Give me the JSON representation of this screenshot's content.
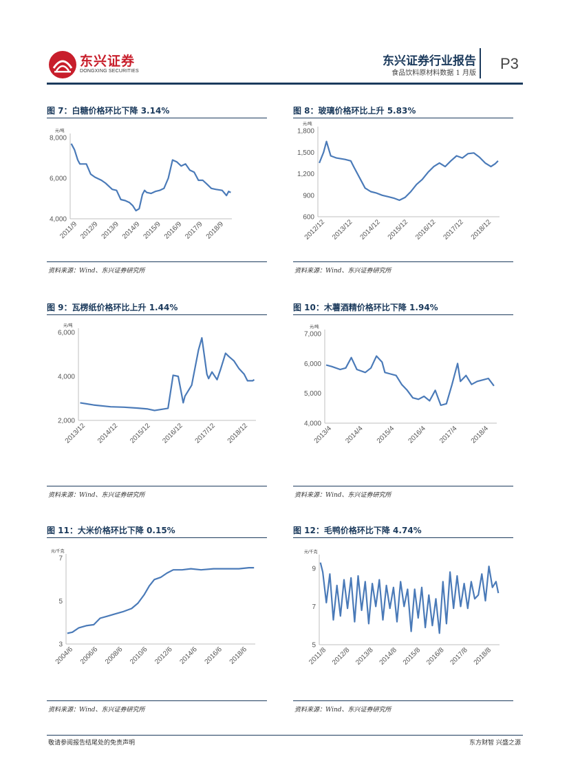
{
  "header": {
    "company_cn": "东兴证券",
    "company_en": "DONGXING SECURITIES",
    "report_title": "东兴证券行业报告",
    "report_subtitle": "食品饮料原材料数据 1 月版",
    "page": "P3"
  },
  "footer": {
    "left": "敬请参阅报告结尾处的免责声明",
    "right": "东方财智 兴盛之源"
  },
  "colors": {
    "line": "#4a7ab8",
    "brand_red": "#c81e2b",
    "navy": "#1b3a5c",
    "axis": "#bfbfbf"
  },
  "chart_data": [
    {
      "type": "line",
      "title": "图 7：白糖价格环比下降 3.14%",
      "unit": "元/吨",
      "source": "资料来源：Wind、东兴证券研究所",
      "yticks": [
        "8,000",
        "6,000",
        "4,000"
      ],
      "ylim": [
        4000,
        8000
      ],
      "xticks": [
        "2011/9",
        "2012/9",
        "2013/9",
        "2014/9",
        "2015/9",
        "2016/9",
        "2017/9",
        "2018/9"
      ],
      "x_range": [
        2011.55,
        2019.05
      ],
      "series": [
        {
          "name": "白糖",
          "x": [
            2011.6,
            2011.75,
            2011.9,
            2012.0,
            2012.3,
            2012.5,
            2012.7,
            2013.0,
            2013.2,
            2013.5,
            2013.7,
            2013.9,
            2014.1,
            2014.3,
            2014.45,
            2014.6,
            2014.75,
            2014.9,
            2015.0,
            2015.1,
            2015.3,
            2015.5,
            2015.7,
            2015.9,
            2016.1,
            2016.3,
            2016.5,
            2016.7,
            2016.9,
            2017.1,
            2017.3,
            2017.5,
            2017.7,
            2017.9,
            2018.1,
            2018.3,
            2018.6,
            2018.8,
            2018.9,
            2019.0
          ],
          "y": [
            7700,
            7400,
            6900,
            6700,
            6700,
            6200,
            6050,
            5900,
            5750,
            5450,
            5400,
            4950,
            4900,
            4800,
            4650,
            4400,
            4500,
            5200,
            5400,
            5300,
            5250,
            5350,
            5400,
            5500,
            6000,
            6900,
            6800,
            6600,
            6700,
            6400,
            6300,
            5900,
            5900,
            5700,
            5500,
            5450,
            5400,
            5150,
            5350,
            5300
          ]
        }
      ]
    },
    {
      "type": "line",
      "title": "图 8：玻璃价格环比上升 5.83%",
      "unit": "元/吨",
      "source": "资料来源：Wind、东兴证券研究所",
      "yticks": [
        "1,800",
        "1,500",
        "1,200",
        "900",
        "600"
      ],
      "ylim": [
        600,
        1800
      ],
      "xticks": [
        "2012/12",
        "2013/12",
        "2014/12",
        "2015/12",
        "2016/12",
        "2017/12",
        "2018/12"
      ],
      "x_range": [
        2012.85,
        2019.2
      ],
      "series": [
        {
          "name": "玻璃",
          "x": [
            2012.9,
            2013.05,
            2013.15,
            2013.3,
            2013.5,
            2013.8,
            2014.0,
            2014.1,
            2014.3,
            2014.5,
            2014.7,
            2014.9,
            2015.1,
            2015.3,
            2015.5,
            2015.7,
            2015.9,
            2016.1,
            2016.3,
            2016.5,
            2016.7,
            2016.9,
            2017.1,
            2017.3,
            2017.5,
            2017.7,
            2017.9,
            2018.1,
            2018.3,
            2018.5,
            2018.7,
            2018.9,
            2019.05,
            2019.15
          ],
          "y": [
            1350,
            1500,
            1650,
            1450,
            1420,
            1400,
            1380,
            1300,
            1150,
            1000,
            950,
            930,
            900,
            880,
            860,
            830,
            870,
            950,
            1050,
            1120,
            1220,
            1300,
            1350,
            1300,
            1380,
            1450,
            1420,
            1480,
            1490,
            1430,
            1350,
            1300,
            1340,
            1380
          ]
        }
      ]
    },
    {
      "type": "line",
      "title": "图 9：瓦楞纸价格环比上升 1.44%",
      "unit": "元/吨",
      "source": "资料来源：Wind、东兴证券研究所",
      "yticks": [
        "6,000",
        "4,000",
        "2,000"
      ],
      "ylim": [
        2000,
        6000
      ],
      "xticks": [
        "2013/12",
        "2014/12",
        "2015/12",
        "2016/12",
        "2017/12",
        "2018/12"
      ],
      "x_range": [
        2013.85,
        2019.1
      ],
      "series": [
        {
          "name": "瓦楞纸",
          "x": [
            2013.9,
            2014.3,
            2014.8,
            2015.2,
            2015.6,
            2015.9,
            2016.1,
            2016.5,
            2016.65,
            2016.8,
            2016.95,
            2017.0,
            2017.2,
            2017.4,
            2017.5,
            2017.65,
            2017.7,
            2017.8,
            2017.95,
            2018.05,
            2018.2,
            2018.3,
            2018.45,
            2018.6,
            2018.75,
            2018.85,
            2019.0,
            2019.05
          ],
          "y": [
            2800,
            2700,
            2620,
            2600,
            2560,
            2520,
            2450,
            2550,
            4050,
            4000,
            2800,
            3100,
            3600,
            5200,
            5750,
            4100,
            3900,
            4200,
            3850,
            4300,
            5050,
            4900,
            4700,
            4350,
            4100,
            3800,
            3800,
            3850
          ]
        }
      ]
    },
    {
      "type": "line",
      "title": "图 10：木薯酒精价格环比下降 1.94%",
      "unit": "元/吨",
      "source": "资料来源：Wind、东兴证券研究所",
      "yticks": [
        "7,000",
        "6,000",
        "5,000",
        "4,000"
      ],
      "ylim": [
        4000,
        7000
      ],
      "xticks": [
        "2013/4",
        "2014/4",
        "2015/4",
        "2016/4",
        "2017/4",
        "2018/4"
      ],
      "x_range": [
        2013.25,
        2019.4
      ],
      "series": [
        {
          "name": "木薯酒精",
          "x": [
            2013.3,
            2013.5,
            2013.8,
            2014.0,
            2014.2,
            2014.4,
            2014.7,
            2014.9,
            2015.0,
            2015.1,
            2015.3,
            2015.4,
            2015.6,
            2015.8,
            2016.0,
            2016.2,
            2016.4,
            2016.6,
            2016.8,
            2017.0,
            2017.2,
            2017.4,
            2017.6,
            2017.8,
            2017.9,
            2018.0,
            2018.1,
            2018.3,
            2018.5,
            2018.7,
            2018.9,
            2019.1,
            2019.3
          ],
          "y": [
            5950,
            5900,
            5800,
            5850,
            6200,
            5800,
            5700,
            5850,
            6050,
            6250,
            6050,
            5700,
            5650,
            5600,
            5300,
            5100,
            4850,
            4800,
            4900,
            4750,
            5100,
            4600,
            4650,
            5300,
            5650,
            6000,
            5400,
            5600,
            5300,
            5400,
            5450,
            5500,
            5250
          ]
        }
      ]
    },
    {
      "type": "line",
      "title": "图 11：大米价格环比下降 0.15%",
      "unit": "元/千克",
      "source": "资料来源：Wind、东兴证券研究所",
      "yticks": [
        "7",
        "5",
        "3"
      ],
      "ylim": [
        3,
        7
      ],
      "xticks": [
        "2004/6",
        "2006/6",
        "2008/6",
        "2010/6",
        "2012/6",
        "2014/6",
        "2016/6",
        "2018/6"
      ],
      "x_range": [
        2004.3,
        2019.3
      ],
      "series": [
        {
          "name": "大米",
          "x": [
            2004.4,
            2004.8,
            2005.3,
            2005.9,
            2006.5,
            2007.0,
            2007.6,
            2008.2,
            2008.8,
            2009.5,
            2010.0,
            2010.5,
            2010.9,
            2011.3,
            2011.8,
            2012.3,
            2012.8,
            2013.5,
            2014.2,
            2015.0,
            2016.0,
            2017.0,
            2018.0,
            2018.8,
            2019.2
          ],
          "y": [
            3.5,
            3.55,
            3.75,
            3.85,
            3.9,
            4.2,
            4.3,
            4.4,
            4.5,
            4.65,
            4.9,
            5.3,
            5.7,
            6.0,
            6.1,
            6.3,
            6.45,
            6.45,
            6.5,
            6.45,
            6.5,
            6.5,
            6.5,
            6.55,
            6.55
          ]
        }
      ]
    },
    {
      "type": "line",
      "title": "图 12：毛鸭价格环比下降 4.74%",
      "unit": "元/千克",
      "source": "资料来源：Wind、东兴证券研究所",
      "yticks": [
        "9",
        "7",
        "5"
      ],
      "ylim": [
        5,
        9.5
      ],
      "xticks": [
        "2011/8",
        "2012/8",
        "2013/8",
        "2014/8",
        "2015/8",
        "2016/8",
        "2017/8",
        "2018/8"
      ],
      "x_range": [
        2011.55,
        2019.2
      ],
      "series": [
        {
          "name": "毛鸭",
          "x": [
            2011.6,
            2011.7,
            2011.85,
            2012.0,
            2012.15,
            2012.3,
            2012.45,
            2012.6,
            2012.75,
            2012.9,
            2013.05,
            2013.2,
            2013.35,
            2013.5,
            2013.65,
            2013.8,
            2013.95,
            2014.1,
            2014.25,
            2014.4,
            2014.55,
            2014.7,
            2014.85,
            2015.0,
            2015.15,
            2015.3,
            2015.45,
            2015.6,
            2015.75,
            2015.9,
            2016.05,
            2016.2,
            2016.35,
            2016.5,
            2016.65,
            2016.8,
            2016.95,
            2017.1,
            2017.25,
            2017.4,
            2017.55,
            2017.7,
            2017.85,
            2018.0,
            2018.15,
            2018.3,
            2018.45,
            2018.6,
            2018.75,
            2018.9,
            2019.05,
            2019.15
          ],
          "y": [
            9.3,
            8.8,
            7.2,
            8.7,
            6.3,
            8.1,
            6.5,
            8.4,
            6.9,
            8.5,
            6.2,
            8.6,
            6.8,
            8.3,
            6.1,
            8.2,
            7.0,
            8.4,
            6.3,
            8.1,
            6.9,
            8.0,
            6.2,
            8.3,
            7.0,
            7.9,
            5.7,
            7.9,
            6.4,
            8.0,
            5.9,
            7.6,
            6.0,
            7.4,
            5.6,
            8.3,
            6.1,
            8.8,
            6.9,
            8.6,
            7.0,
            8.2,
            6.9,
            8.3,
            7.4,
            7.6,
            8.7,
            7.3,
            9.1,
            8.0,
            8.3,
            7.7
          ]
        }
      ]
    }
  ]
}
